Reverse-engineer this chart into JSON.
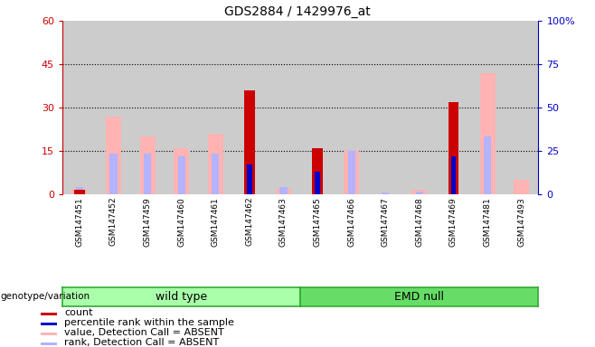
{
  "title": "GDS2884 / 1429976_at",
  "samples": [
    "GSM147451",
    "GSM147452",
    "GSM147459",
    "GSM147460",
    "GSM147461",
    "GSM147462",
    "GSM147463",
    "GSM147465",
    "GSM147466",
    "GSM147467",
    "GSM147468",
    "GSM147469",
    "GSM147481",
    "GSM147493"
  ],
  "count": [
    1.5,
    0,
    0,
    0,
    0,
    36,
    0,
    16,
    0,
    0,
    0,
    32,
    0,
    0
  ],
  "percentile_rank": [
    0,
    0,
    0,
    0,
    0,
    17,
    0,
    13,
    0,
    0,
    0,
    22,
    0,
    0
  ],
  "value_absent": [
    2.0,
    27,
    20,
    16,
    21,
    0,
    2.0,
    0,
    15,
    0,
    1.5,
    0,
    42,
    5
  ],
  "rank_absent": [
    2.5,
    14,
    14,
    13,
    14,
    0,
    2.5,
    0,
    15,
    0.5,
    1.0,
    0,
    20,
    0
  ],
  "groups": [
    {
      "label": "wild type",
      "start": 0,
      "end": 7
    },
    {
      "label": "EMD null",
      "start": 7,
      "end": 14
    }
  ],
  "ylim_left": [
    0,
    60
  ],
  "ylim_right": [
    0,
    100
  ],
  "yticks_left": [
    0,
    15,
    30,
    45,
    60
  ],
  "ytick_labels_left": [
    "0",
    "15",
    "30",
    "45",
    "60"
  ],
  "yticks_right": [
    0,
    25,
    50,
    75,
    100
  ],
  "ytick_labels_right": [
    "0",
    "25",
    "50",
    "75",
    "100%"
  ],
  "color_count": "#cc0000",
  "color_rank": "#0000cc",
  "color_value_absent": "#ffb3b3",
  "color_rank_absent": "#b3b3ff",
  "color_left_axis": "#cc0000",
  "color_right_axis": "#0000cc",
  "bar_bg_color": "#cccccc",
  "group_color_wt": "#aaffaa",
  "group_color_emd": "#66dd66",
  "group_border_color": "#33aa33",
  "legend_items": [
    {
      "label": "count",
      "color": "#cc0000"
    },
    {
      "label": "percentile rank within the sample",
      "color": "#0000cc"
    },
    {
      "label": "value, Detection Call = ABSENT",
      "color": "#ffb3b3"
    },
    {
      "label": "rank, Detection Call = ABSENT",
      "color": "#b3b3ff"
    }
  ]
}
